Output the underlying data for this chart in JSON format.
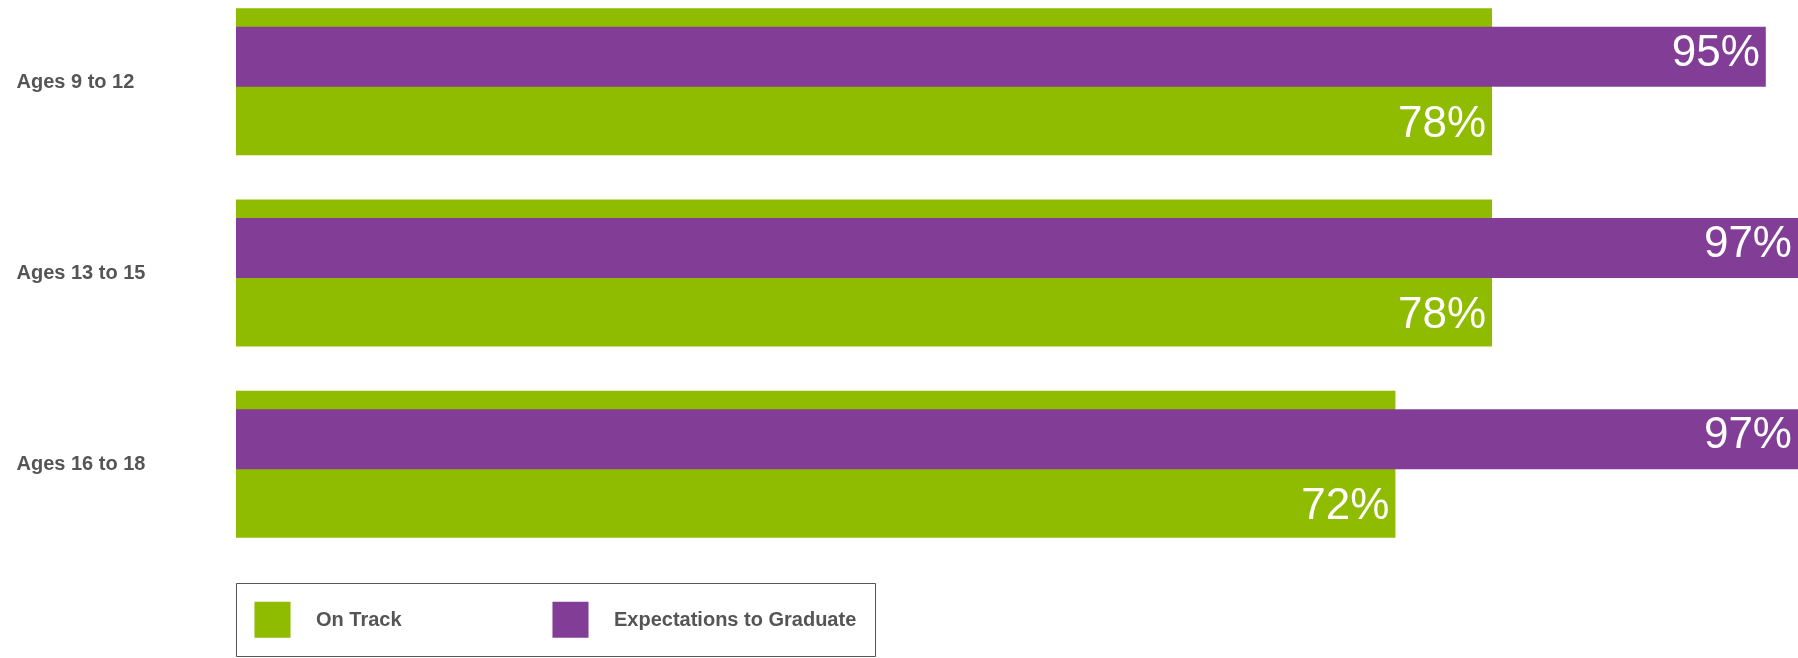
{
  "chart_data": {
    "type": "bar",
    "orientation": "horizontal",
    "categories": [
      "Ages 9 to 12",
      "Ages 13 to 15",
      "Ages 16 to 18"
    ],
    "series": [
      {
        "name": "On Track",
        "color": "#8fbb00",
        "values": [
          78,
          78,
          72
        ],
        "value_labels": [
          "78%",
          "78%",
          "72%"
        ]
      },
      {
        "name": "Expectations to Graduate",
        "color": "#823e96",
        "values": [
          95,
          97,
          97
        ],
        "value_labels": [
          "95%",
          "97%",
          "97%"
        ]
      }
    ],
    "legend": "bottom left"
  }
}
